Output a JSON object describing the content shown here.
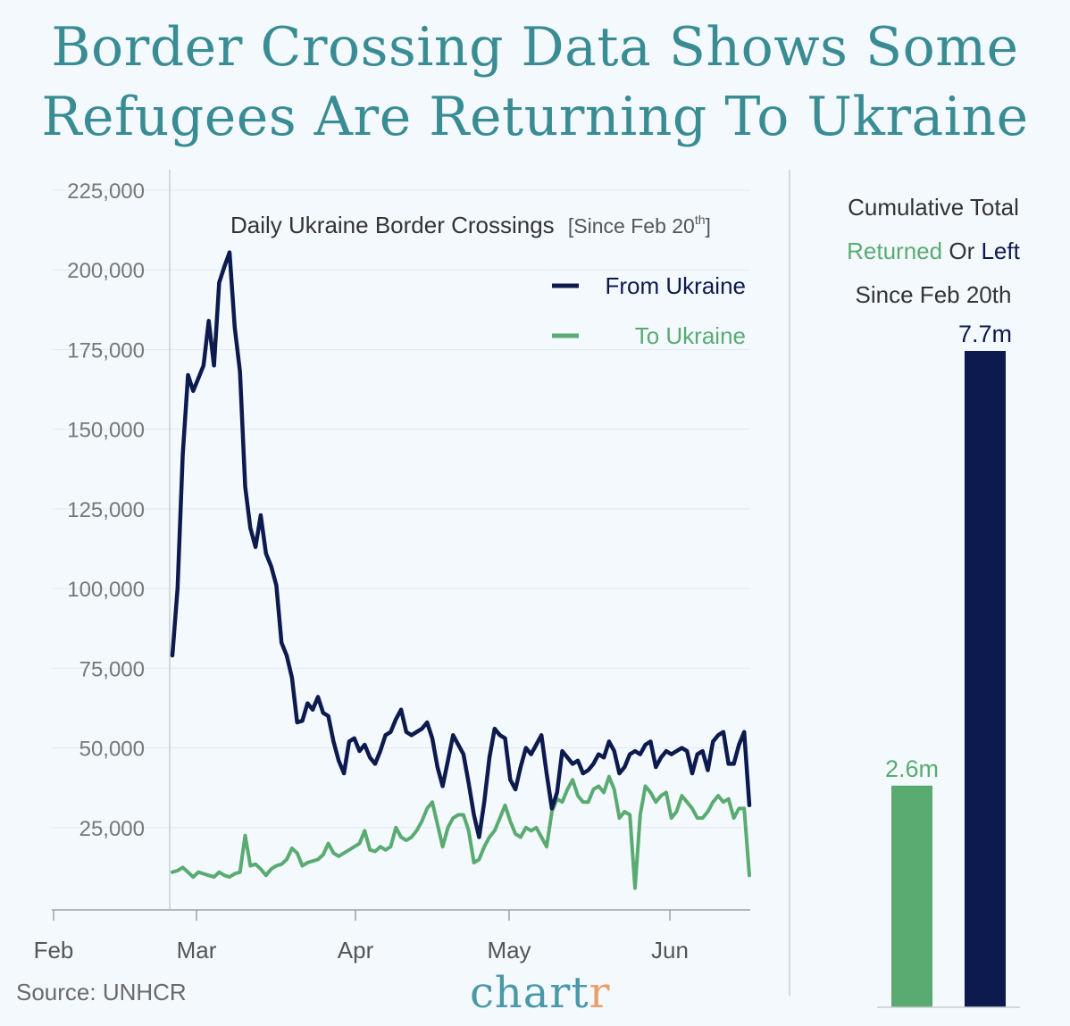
{
  "title": {
    "line1": "Border Crossing Data Shows Some",
    "line2": "Refugees Are Returning To Ukraine"
  },
  "source": "Source: UNHCR",
  "brand": {
    "main": "chart",
    "accent": "r"
  },
  "colors": {
    "from": "#0c1a4e",
    "to": "#5aab72",
    "title": "#3a8c94"
  },
  "side_panel": {
    "line1": "Cumulative Total",
    "returned": "Returned",
    "or": "Or",
    "left": "Left",
    "line3": "Since Feb 20th"
  },
  "chart_data": [
    {
      "type": "line",
      "title": "Daily Ukraine Border Crossings",
      "subtitle_prefix": "[Since Feb 20",
      "subtitle_sup": "th",
      "subtitle_suffix": "]",
      "xlabel": "",
      "ylabel": "",
      "ylim": [
        0,
        225000
      ],
      "yticks": [
        25000,
        50000,
        75000,
        100000,
        125000,
        150000,
        175000,
        200000,
        225000
      ],
      "ytick_labels": [
        "25,000",
        "50,000",
        "75,000",
        "100,000",
        "125,000",
        "150,000",
        "175,000",
        "200,000",
        "225,000"
      ],
      "xticks": [
        "Feb",
        "Mar",
        "Apr",
        "May",
        "Jun"
      ],
      "grid": true,
      "legend": "top-right",
      "x_start": "2022-02-24",
      "series": [
        {
          "name": "From Ukraine",
          "values": [
            79000,
            100000,
            142000,
            167000,
            162000,
            166000,
            170000,
            184000,
            170000,
            196000,
            201000,
            205500,
            182000,
            168000,
            132000,
            119000,
            113000,
            123000,
            111000,
            107000,
            101000,
            83000,
            79000,
            72000,
            58000,
            58500,
            64000,
            62000,
            66000,
            61000,
            60000,
            52000,
            46000,
            42000,
            52000,
            53000,
            49000,
            51000,
            47000,
            45000,
            49000,
            54000,
            55000,
            59000,
            62000,
            55000,
            54000,
            55000,
            56000,
            58000,
            53000,
            44000,
            38000,
            46000,
            54000,
            51000,
            48000,
            39000,
            29000,
            22000,
            33000,
            47000,
            56000,
            54000,
            53000,
            40000,
            37000,
            44000,
            50000,
            48000,
            51000,
            54000,
            42000,
            31000,
            36000,
            49000,
            47000,
            45000,
            46000,
            42000,
            43000,
            45000,
            48000,
            47000,
            52000,
            49000,
            42000,
            44000,
            48000,
            49000,
            48000,
            51000,
            52000,
            44000,
            47000,
            49000,
            48000,
            49000,
            50000,
            49000,
            42000,
            48000,
            49000,
            43000,
            52000,
            54000,
            55000,
            45000,
            45000,
            51000,
            55000,
            32000
          ]
        },
        {
          "name": "To Ukraine",
          "values": [
            11000,
            11500,
            12500,
            11000,
            9500,
            11000,
            10500,
            10000,
            9500,
            11000,
            10000,
            9500,
            10500,
            11000,
            22500,
            13000,
            13500,
            12000,
            10000,
            12000,
            13000,
            13500,
            15000,
            18500,
            17000,
            13000,
            14000,
            14500,
            15000,
            16500,
            20000,
            17000,
            16000,
            17000,
            18000,
            19000,
            20000,
            24000,
            18000,
            17500,
            19000,
            18000,
            19000,
            25000,
            22000,
            21000,
            22000,
            24000,
            27000,
            31000,
            33000,
            26000,
            19000,
            25000,
            28000,
            29000,
            29000,
            24000,
            14000,
            15000,
            19000,
            22000,
            24000,
            28000,
            32000,
            27000,
            23000,
            22000,
            25000,
            24000,
            25000,
            22000,
            19000,
            30000,
            34000,
            33000,
            37000,
            40000,
            35000,
            33000,
            33000,
            37000,
            38000,
            36000,
            41000,
            37000,
            28000,
            30000,
            29000,
            6000,
            29000,
            38000,
            36000,
            33000,
            35000,
            36000,
            28000,
            30000,
            35000,
            33000,
            31000,
            28000,
            28000,
            30000,
            33000,
            35000,
            33000,
            34000,
            28000,
            31000,
            31000,
            10000
          ]
        }
      ]
    },
    {
      "type": "bar",
      "title": "Cumulative Total Returned Or Left Since Feb 20th",
      "categories": [
        "Returned",
        "Left"
      ],
      "values": [
        2.6,
        7.7
      ],
      "value_labels": [
        "2.6m",
        "7.7m"
      ],
      "unit": "m"
    }
  ]
}
